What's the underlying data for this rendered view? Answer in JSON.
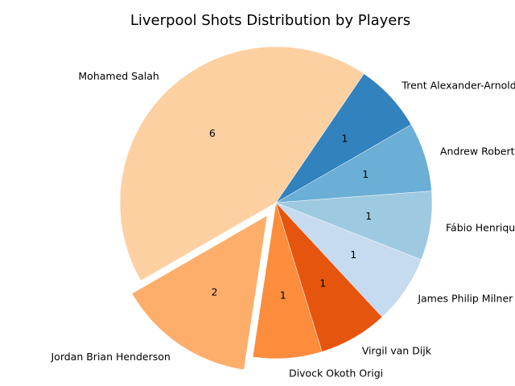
{
  "chart_data": {
    "type": "pie",
    "title": "Liverpool Shots Distribution by Players",
    "slices": [
      {
        "label": "Trent Alexander-Arnold",
        "value": 1,
        "value_label": "1",
        "color": "#3182bd",
        "exploded": false
      },
      {
        "label": "Mohamed Salah",
        "value": 6,
        "value_label": "6",
        "color": "#fdd0a2",
        "exploded": false
      },
      {
        "label": "Jordan Brian Henderson",
        "value": 2,
        "value_label": "2",
        "color": "#fdae6b",
        "exploded": true
      },
      {
        "label": "Divock Okoth Origi",
        "value": 1,
        "value_label": "1",
        "color": "#fd8d3c",
        "exploded": false
      },
      {
        "label": "Virgil van Dijk",
        "value": 1,
        "value_label": "1",
        "color": "#e6550d",
        "exploded": false
      },
      {
        "label": "James Philip Milner",
        "value": 1,
        "value_label": "1",
        "color": "#c6dbef",
        "exploded": false
      },
      {
        "label": "Fábio Henrique Tavares",
        "value": 1,
        "value_label": "1",
        "color": "#9ecae1",
        "exploded": false
      },
      {
        "label": "Andrew Robertson",
        "value": 1,
        "value_label": "1",
        "color": "#6baed6",
        "exploded": false
      }
    ],
    "start_angle_deg": 30,
    "direction": "counterclockwise",
    "edge_color": "#ffffff"
  }
}
